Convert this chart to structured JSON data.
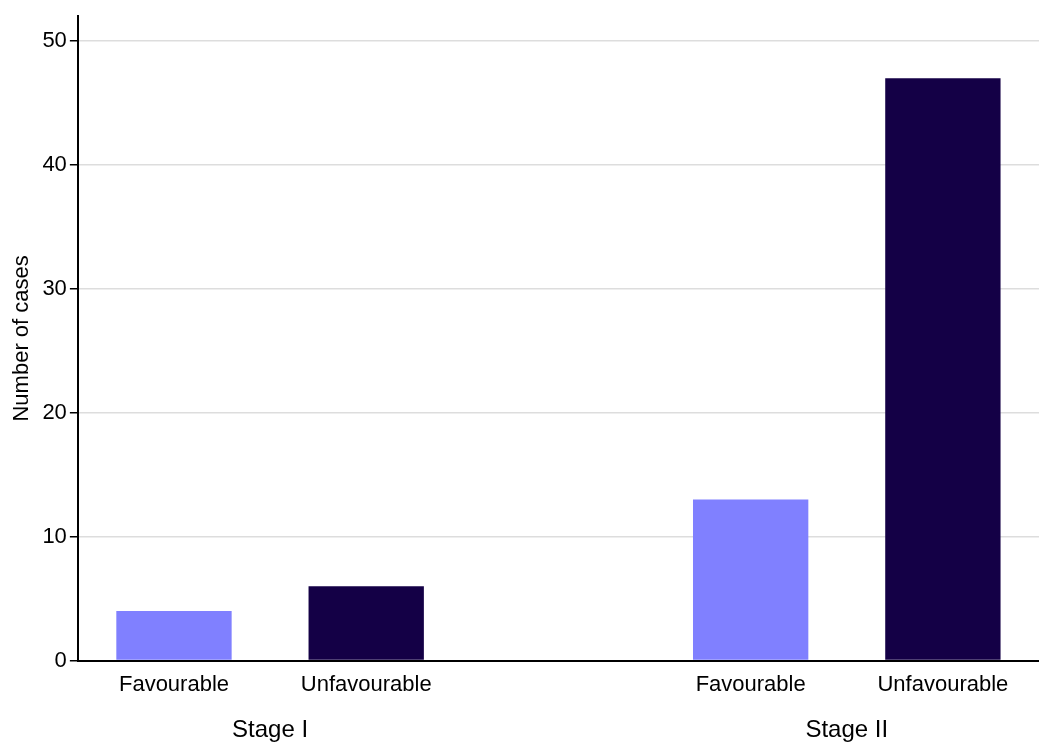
{
  "chart_data": {
    "type": "bar",
    "ylabel": "Number of cases",
    "categories": [
      "Favourable",
      "Unfavourable",
      null,
      "Favourable",
      "Unfavourable"
    ],
    "values": [
      4,
      6,
      null,
      13,
      47
    ],
    "colors": [
      "#8080ff",
      "#140046",
      "#8080ff",
      "#8080ff",
      "#140046"
    ],
    "ylim": [
      0,
      52
    ],
    "yticks": [
      0,
      10,
      20,
      30,
      40,
      50
    ],
    "grid": "y",
    "legend": false,
    "annotations": [
      "Stage I",
      "Stage II"
    ]
  }
}
